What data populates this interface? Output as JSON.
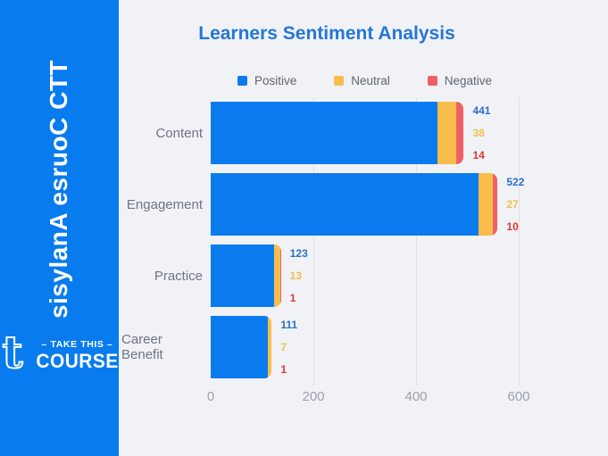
{
  "sidebar": {
    "vertical_text": "TTC Course Analysis",
    "logo": {
      "glyph": "t",
      "tagline": "– TAKE THIS –",
      "brand": "COURSE"
    }
  },
  "chart_data": {
    "type": "bar",
    "orientation": "horizontal",
    "stacked": true,
    "title": "Learners Sentiment Analysis",
    "categories": [
      "Content",
      "Engagement",
      "Practice",
      "Career Benefit"
    ],
    "series": [
      {
        "name": "Positive",
        "color": "#0a7bee",
        "label_color": "#2b6fc9",
        "values": [
          441,
          522,
          123,
          111
        ]
      },
      {
        "name": "Neutral",
        "color": "#f9bd4c",
        "label_color": "#f1bf4e",
        "values": [
          38,
          27,
          13,
          7
        ]
      },
      {
        "name": "Negative",
        "color": "#ef6064",
        "label_color": "#e03436",
        "values": [
          14,
          10,
          1,
          1
        ]
      }
    ],
    "x_ticks": [
      0,
      200,
      400,
      600
    ],
    "xlim": [
      0,
      660
    ],
    "legend_position": "top",
    "grid": true
  },
  "colors": {
    "sidebar_bg": "#087bee",
    "panel_bg": "#f1f2f6",
    "title": "#2577d4",
    "gridline": "#dfe1e7",
    "category_label": "#6e7482",
    "axis_label": "#9aa0aa",
    "legend_label": "#5d646f",
    "logo_text": "#ffffff"
  }
}
